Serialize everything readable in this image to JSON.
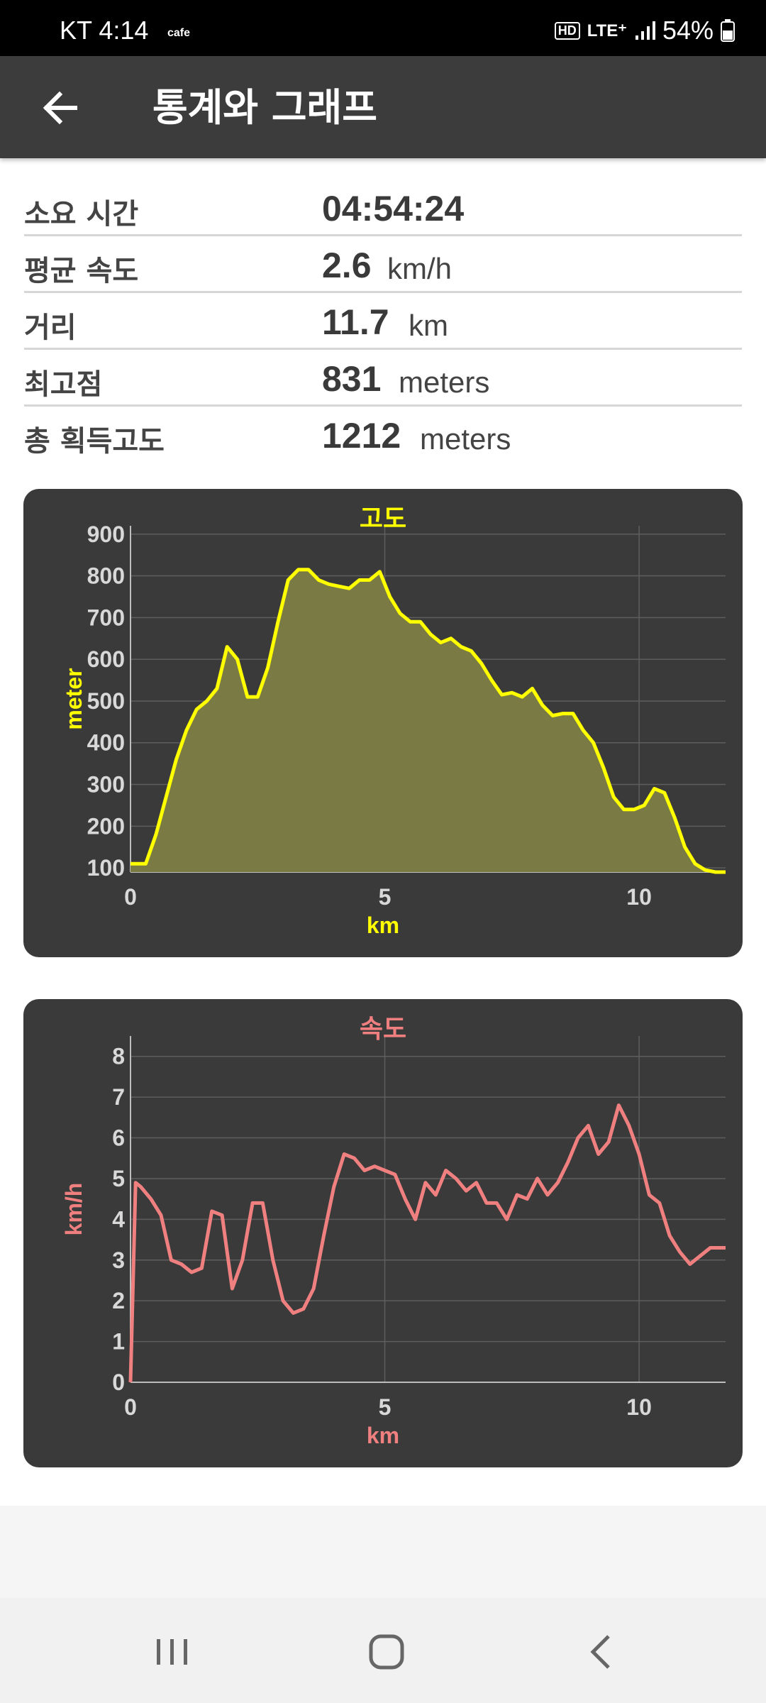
{
  "status_bar": {
    "carrier_time": "KT  4:14",
    "cafe": "cafe",
    "hd": "HD",
    "network": "LTE⁺",
    "battery": "54%"
  },
  "app_bar": {
    "title": "통계와 그래프",
    "back_icon": "arrow-left-icon"
  },
  "stats": [
    {
      "label": "소요 시간",
      "value": "04:54:24",
      "unit": ""
    },
    {
      "label": "평균 속도",
      "value": "2.6",
      "unit": "km/h"
    },
    {
      "label": "거리",
      "value": "11.7",
      "unit": "km"
    },
    {
      "label": "최고점",
      "value": "831",
      "unit": "meters"
    },
    {
      "label": "총 획득고도",
      "value": "1212",
      "unit": "meters"
    }
  ],
  "chart_data": [
    {
      "type": "area",
      "title": "고도",
      "xlabel": "km",
      "ylabel": "meter",
      "color": "#ffff00",
      "fill": "#7a7a44",
      "xlim": [
        0,
        11.7
      ],
      "ylim": [
        90,
        920
      ],
      "x_ticks": [
        0,
        5,
        10
      ],
      "y_ticks": [
        100,
        200,
        300,
        400,
        500,
        600,
        700,
        800,
        900
      ],
      "grid": true,
      "x": [
        0,
        0.3,
        0.5,
        0.7,
        0.9,
        1.1,
        1.3,
        1.5,
        1.7,
        1.9,
        2.1,
        2.3,
        2.5,
        2.7,
        2.9,
        3.1,
        3.3,
        3.5,
        3.7,
        3.9,
        4.1,
        4.3,
        4.5,
        4.7,
        4.9,
        5.1,
        5.3,
        5.5,
        5.7,
        5.9,
        6.1,
        6.3,
        6.5,
        6.7,
        6.9,
        7.1,
        7.3,
        7.5,
        7.7,
        7.9,
        8.1,
        8.3,
        8.5,
        8.7,
        8.9,
        9.1,
        9.3,
        9.5,
        9.7,
        9.9,
        10.1,
        10.3,
        10.5,
        10.7,
        10.9,
        11.1,
        11.3,
        11.5,
        11.7
      ],
      "y": [
        110,
        110,
        180,
        270,
        360,
        430,
        480,
        500,
        530,
        630,
        600,
        510,
        510,
        580,
        690,
        790,
        815,
        815,
        790,
        780,
        775,
        770,
        790,
        790,
        810,
        750,
        710,
        690,
        690,
        660,
        640,
        650,
        630,
        620,
        590,
        550,
        515,
        520,
        510,
        530,
        490,
        465,
        470,
        470,
        430,
        400,
        340,
        270,
        240,
        240,
        250,
        290,
        280,
        220,
        150,
        110,
        95,
        90,
        90
      ],
      "x_unit_note": ""
    },
    {
      "type": "line",
      "title": "속도",
      "xlabel": "km",
      "ylabel": "km/h",
      "color": "#f08080",
      "xlim": [
        0,
        11.7
      ],
      "ylim": [
        0,
        8.5
      ],
      "x_ticks": [
        0,
        5,
        10
      ],
      "y_ticks": [
        0,
        1,
        2,
        3,
        4,
        5,
        6,
        7,
        8
      ],
      "grid": true,
      "x": [
        0,
        0.1,
        0.2,
        0.4,
        0.6,
        0.8,
        1.0,
        1.2,
        1.4,
        1.6,
        1.8,
        1.9,
        2.0,
        2.2,
        2.4,
        2.6,
        2.8,
        3.0,
        3.2,
        3.4,
        3.6,
        3.8,
        4.0,
        4.2,
        4.4,
        4.6,
        4.8,
        5.0,
        5.2,
        5.4,
        5.6,
        5.8,
        6.0,
        6.2,
        6.4,
        6.6,
        6.8,
        7.0,
        7.2,
        7.4,
        7.6,
        7.8,
        8.0,
        8.2,
        8.4,
        8.6,
        8.8,
        9.0,
        9.2,
        9.4,
        9.6,
        9.8,
        10.0,
        10.2,
        10.4,
        10.6,
        10.8,
        11.0,
        11.2,
        11.4,
        11.7
      ],
      "y": [
        0,
        4.9,
        4.8,
        4.5,
        4.1,
        3.0,
        2.9,
        2.7,
        2.8,
        4.2,
        4.1,
        3.2,
        2.3,
        3.0,
        4.4,
        4.4,
        3.0,
        2.0,
        1.7,
        1.8,
        2.3,
        3.6,
        4.8,
        5.6,
        5.5,
        5.2,
        5.3,
        5.2,
        5.1,
        4.5,
        4.0,
        4.9,
        4.6,
        5.2,
        5.0,
        4.7,
        4.9,
        4.4,
        4.4,
        4.0,
        4.6,
        4.5,
        5.0,
        4.6,
        4.9,
        5.4,
        6.0,
        6.3,
        5.6,
        5.9,
        6.8,
        6.3,
        5.6,
        4.6,
        4.4,
        3.6,
        3.2,
        2.9,
        3.1,
        3.3,
        3.3
      ]
    }
  ]
}
